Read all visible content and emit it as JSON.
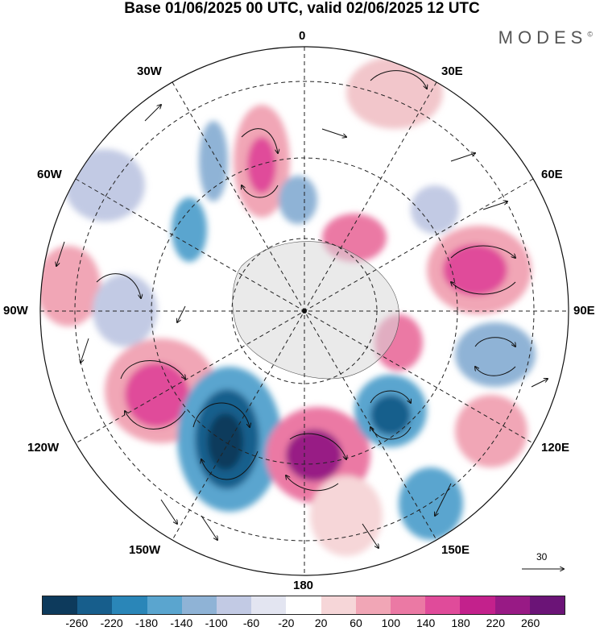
{
  "header": {
    "title": "Base 01/06/2025 00 UTC, valid 02/06/2025 12 UTC",
    "brand": "MODES"
  },
  "map": {
    "projection": "south-polar-stereographic",
    "longitude_labels": {
      "top": "0",
      "top_right": "30E",
      "right_upper": "60E",
      "right": "90E",
      "right_lower": "120E",
      "bottom_right": "150E",
      "bottom": "180",
      "bottom_left": "150W",
      "left_lower": "120W",
      "left": "90W",
      "left_upper": "60W",
      "top_left": "30W"
    },
    "wind_reference_vector_label": "30"
  },
  "colorbar": {
    "tick_labels": [
      "-260",
      "-220",
      "-180",
      "-140",
      "-100",
      "-60",
      "-20",
      "20",
      "60",
      "100",
      "140",
      "180",
      "220",
      "260"
    ],
    "colors": [
      "#0d3a5c",
      "#175e8c",
      "#2a86b8",
      "#5aa5cf",
      "#8fb3d6",
      "#c2cae4",
      "#e3e5f1",
      "#ffffff",
      "#f6d6d8",
      "#f1a6b6",
      "#eb79a4",
      "#e04b9a",
      "#c3218c",
      "#981a85",
      "#6b1477"
    ]
  }
}
